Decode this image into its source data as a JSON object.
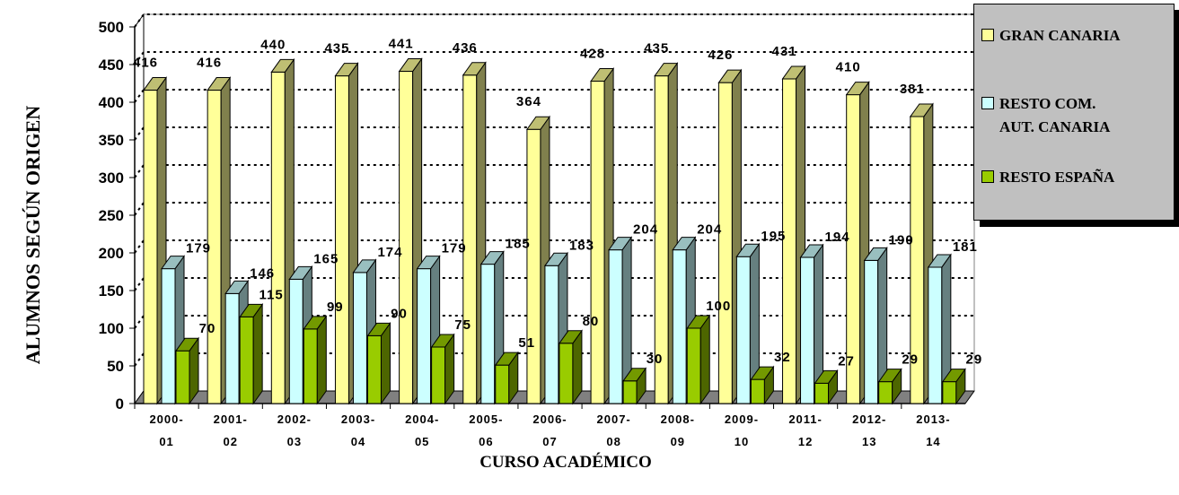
{
  "chart_data": {
    "type": "bar",
    "xlabel": "CURSO ACADÉMICO",
    "ylabel": "ALUMNOS SEGÚN ORIGEN",
    "ylim": [
      0,
      500
    ],
    "yticks": [
      0,
      50,
      100,
      150,
      200,
      250,
      300,
      350,
      400,
      450,
      500
    ],
    "grid": true,
    "legend_position": "top-right",
    "categories": [
      [
        "2000-",
        "01"
      ],
      [
        "2001-",
        "02"
      ],
      [
        "2002-",
        "03"
      ],
      [
        "2003-",
        "04"
      ],
      [
        "2004-",
        "05"
      ],
      [
        "2005-",
        "06"
      ],
      [
        "2006-",
        "07"
      ],
      [
        "2007-",
        "08"
      ],
      [
        "2008-",
        "09"
      ],
      [
        "2009-",
        "10"
      ],
      [
        "2011-",
        "12"
      ],
      [
        "2012-",
        "13"
      ],
      [
        "2013-",
        "14"
      ]
    ],
    "series": [
      {
        "name": "GRAN CANARIA",
        "color": "#ffff99",
        "values": [
          416,
          416,
          440,
          435,
          441,
          436,
          364,
          428,
          435,
          426,
          431,
          410,
          381
        ]
      },
      {
        "name": "RESTO COM.\nAUT. CANARIA",
        "color": "#ccffff",
        "values": [
          179,
          146,
          165,
          174,
          179,
          185,
          183,
          204,
          204,
          195,
          194,
          190,
          181
        ]
      },
      {
        "name": "RESTO ESPAÑA",
        "color": "#99cc00",
        "values": [
          70,
          115,
          99,
          90,
          75,
          51,
          80,
          30,
          100,
          32,
          27,
          29,
          29
        ]
      }
    ]
  }
}
